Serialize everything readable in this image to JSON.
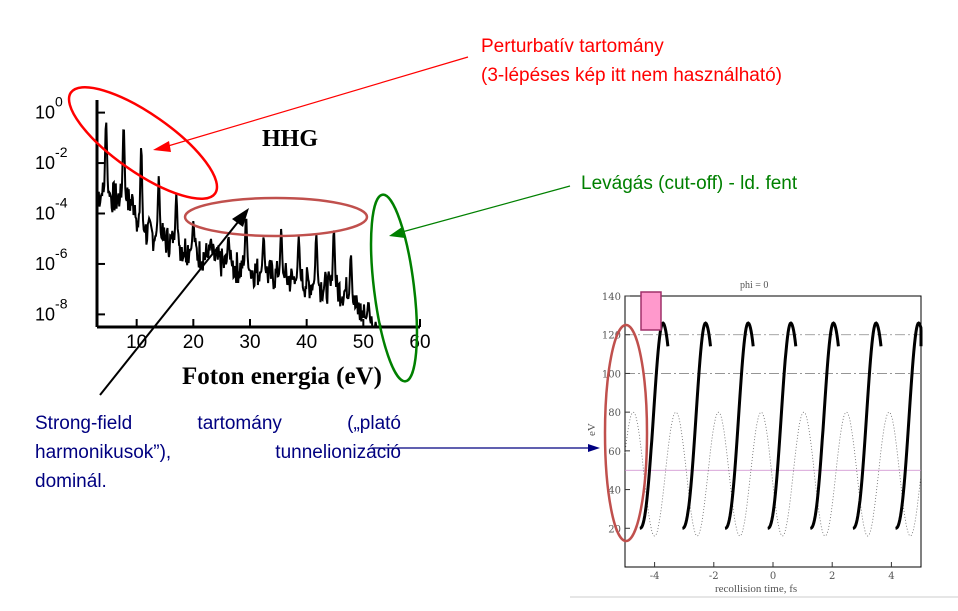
{
  "annotations": {
    "perturbative_line1": "Perturbatív tartomány",
    "perturbative_line2": "(3-lépéses kép itt nem használható)",
    "cutoff": "Levágás (cut-off) - ld. fent",
    "strongfield_line1": "Strong-field tartomány („plató",
    "strongfield_line2": "harmonikusok”), tunnelionizáció",
    "strongfield_line3": "dominál."
  },
  "spectrum_chart": {
    "type": "line",
    "title": "HHG",
    "xlabel": "Foton energia (eV)",
    "x_ticks": [
      "10",
      "20",
      "30",
      "40",
      "50",
      "60"
    ],
    "y_ticks": [
      {
        "base": "10",
        "exp": "0"
      },
      {
        "base": "10",
        "exp": "-2"
      },
      {
        "base": "10",
        "exp": "-4"
      },
      {
        "base": "10",
        "exp": "-6"
      },
      {
        "base": "10",
        "exp": "-8"
      }
    ],
    "xlim": [
      3,
      60
    ],
    "ylim_log10": [
      -8.5,
      0.5
    ],
    "harmonic_peaks": [
      {
        "x": 4.6,
        "log10y": -0.3
      },
      {
        "x": 7.7,
        "log10y": -0.5
      },
      {
        "x": 10.8,
        "log10y": -1.3
      },
      {
        "x": 13.9,
        "log10y": -2.5
      },
      {
        "x": 17.0,
        "log10y": -3.2
      },
      {
        "x": 20.0,
        "log10y": -4.3
      },
      {
        "x": 23.1,
        "log10y": -5.0
      },
      {
        "x": 26.2,
        "log10y": -4.9
      },
      {
        "x": 29.3,
        "log10y": -4.1
      },
      {
        "x": 32.4,
        "log10y": -4.9
      },
      {
        "x": 35.5,
        "log10y": -4.6
      },
      {
        "x": 38.6,
        "log10y": -4.9
      },
      {
        "x": 41.7,
        "log10y": -4.8
      },
      {
        "x": 44.8,
        "log10y": -4.6
      },
      {
        "x": 47.8,
        "log10y": -5.6
      },
      {
        "x": 50.9,
        "log10y": -7.5
      }
    ]
  },
  "energy_chart": {
    "type": "line",
    "title": "phi = 0",
    "xlabel": "recollision time, fs",
    "ylabel": "eV",
    "x_ticks": [
      "-4",
      "-2",
      "0",
      "2",
      "4"
    ],
    "y_ticks": [
      "140",
      "120",
      "100",
      "80",
      "60",
      "40",
      "20"
    ],
    "xlim": [
      -5,
      5
    ],
    "ylim": [
      0,
      140
    ],
    "cycle_starts_fs": [
      -4.5,
      -3.06,
      -1.62,
      -0.18,
      1.26,
      2.7,
      4.14
    ],
    "cycle_period_fs": 1.44,
    "energy_min_eV": 20,
    "energy_max_eV": 126,
    "reference_line_eV": 50,
    "colors": {
      "marker": "#ff99cc",
      "marker_border": "#a0306a",
      "ellipse": "#c0504d"
    }
  },
  "colors": {
    "red": "#ff0000",
    "green": "#008000",
    "navy": "#000080",
    "brown": "#c0504d"
  }
}
